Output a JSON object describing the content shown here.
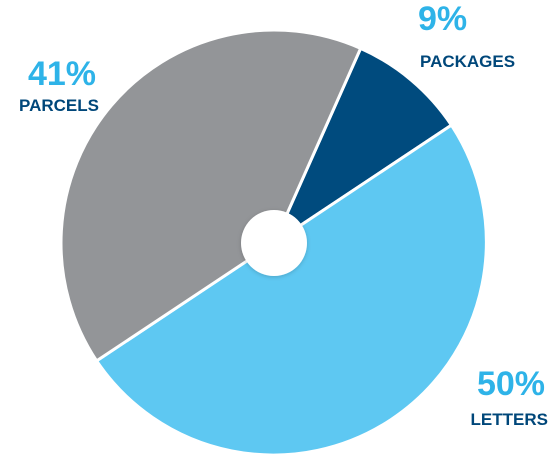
{
  "chart_data": {
    "type": "pie",
    "categories": [
      "PACKAGES",
      "LETTERS",
      "PARCELS"
    ],
    "values": [
      9,
      50,
      41
    ],
    "percent_labels": [
      "9%",
      "50%",
      "41%"
    ],
    "colors": [
      "#004b7e",
      "#5ec8f2",
      "#939598"
    ],
    "label_colors": {
      "percent": "#2eb3e8",
      "category": "#00477a"
    },
    "center_hole": true,
    "title": ""
  }
}
